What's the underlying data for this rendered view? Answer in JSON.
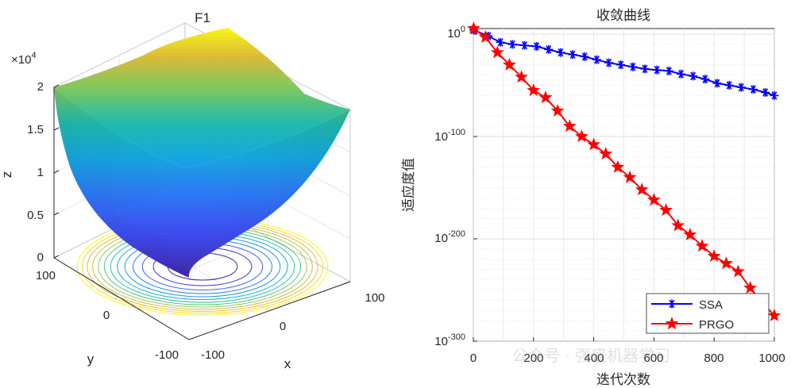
{
  "watermark": "公众号 · 强盛机器学习",
  "chart_data": [
    {
      "type": "surface3d",
      "title": "F1",
      "function": "sphere",
      "xlabel": "x",
      "ylabel": "y",
      "zlabel": "z",
      "zscale_label": "×10",
      "zscale_exp": "4",
      "x_ticks": [
        "-100",
        "0",
        "100"
      ],
      "y_ticks": [
        "-100",
        "0",
        "100"
      ],
      "z_ticks": [
        "0",
        "0.5",
        "1",
        "1.5",
        "2"
      ],
      "xlim": [
        -100,
        100
      ],
      "ylim": [
        -100,
        100
      ],
      "zlim": [
        0,
        20000
      ],
      "contour_levels": [
        1250,
        2500,
        3750,
        5000,
        6250,
        7500,
        8750,
        10000,
        11250,
        12500,
        13750,
        15000,
        16250
      ]
    },
    {
      "type": "line",
      "title": "收敛曲线",
      "xlabel": "迭代次数",
      "ylabel": "适应度值",
      "yscale": "log",
      "xlim": [
        0,
        1000
      ],
      "ylim_exp": [
        -300,
        10
      ],
      "x_ticks": [
        "0",
        "200",
        "400",
        "600",
        "800",
        "1000"
      ],
      "y_tick_base": "10",
      "y_tick_exps": [
        "0",
        "-100",
        "-200",
        "-300"
      ],
      "y_tick_values": [
        0,
        -100,
        -200,
        -300
      ],
      "legend_position": "bottom-right",
      "series": [
        {
          "name": "SSA",
          "color": "#0000ff",
          "marker": "asterisk",
          "x": [
            1,
            50,
            90,
            130,
            170,
            210,
            250,
            290,
            330,
            370,
            410,
            450,
            490,
            530,
            570,
            610,
            650,
            690,
            730,
            770,
            810,
            850,
            890,
            930,
            970,
            1000
          ],
          "log10_y": [
            4,
            -2,
            -8,
            -10,
            -11,
            -12,
            -15,
            -18,
            -20,
            -22,
            -25,
            -28,
            -30,
            -32,
            -34,
            -35,
            -36,
            -39,
            -41,
            -44,
            -48,
            -50,
            -52,
            -54,
            -57,
            -60
          ]
        },
        {
          "name": "PRGO",
          "color": "#ff0000",
          "marker": "pentagram",
          "x": [
            1,
            40,
            80,
            120,
            160,
            200,
            240,
            280,
            320,
            360,
            400,
            440,
            480,
            520,
            560,
            600,
            640,
            680,
            720,
            760,
            800,
            840,
            880,
            920,
            960,
            1000
          ],
          "log10_y": [
            8,
            -3,
            -18,
            -30,
            -42,
            -55,
            -62,
            -75,
            -90,
            -100,
            -108,
            -117,
            -130,
            -140,
            -152,
            -162,
            -172,
            -187,
            -196,
            -207,
            -217,
            -224,
            -232,
            -248,
            -262,
            -275
          ]
        }
      ]
    }
  ]
}
